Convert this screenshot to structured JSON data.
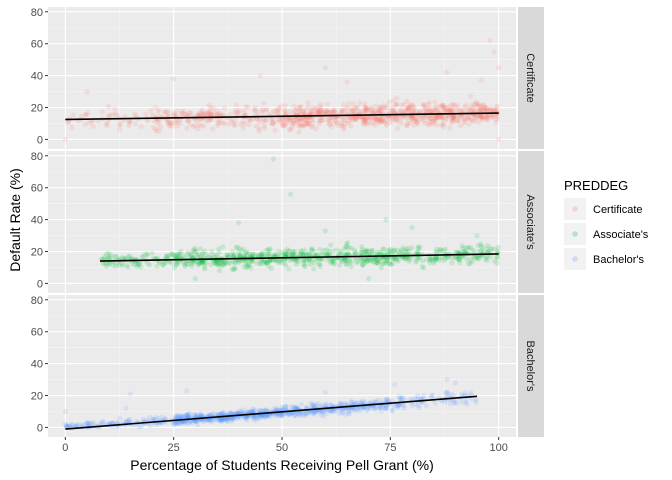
{
  "chart_data": {
    "type": "scatter",
    "xlabel": "Percentage of Students Receiving Pell Grant (%)",
    "ylabel": "Default Rate (%)",
    "xlim": [
      -4,
      104
    ],
    "ylim": [
      -6,
      83
    ],
    "x_ticks": [
      "0",
      "25",
      "50",
      "75",
      "100"
    ],
    "x_tick_values": [
      0,
      25,
      50,
      75,
      100
    ],
    "y_ticks": [
      "0",
      "20",
      "40",
      "60",
      "80"
    ],
    "y_tick_values": [
      0,
      20,
      40,
      60,
      80
    ],
    "grid": true,
    "point_alpha": 0.15,
    "legend": {
      "title": "PREDDEG",
      "position": "right",
      "entries": [
        "Certificate",
        "Associate's",
        "Bachelor's"
      ]
    },
    "panels": [
      {
        "strip": "Certificate",
        "color": "#F8766D",
        "trend": {
          "x": [
            0,
            100
          ],
          "y": [
            12.5,
            16.5
          ]
        },
        "cloud": [
          {
            "x": [
              0,
              20
            ],
            "y_center": [
              12,
              13
            ],
            "spread": 6,
            "n": 50
          },
          {
            "x": [
              20,
              50
            ],
            "y_center": [
              13,
              14
            ],
            "spread": 7,
            "n": 220
          },
          {
            "x": [
              50,
              75
            ],
            "y_center": [
              14,
              15.5
            ],
            "spread": 7,
            "n": 360
          },
          {
            "x": [
              75,
              100
            ],
            "y_center": [
              15.5,
              16.5
            ],
            "spread": 7,
            "n": 360
          }
        ],
        "outliers": [
          {
            "x": 98,
            "y": 62
          },
          {
            "x": 99,
            "y": 55
          },
          {
            "x": 100,
            "y": 45
          },
          {
            "x": 60,
            "y": 45
          },
          {
            "x": 45,
            "y": 40
          },
          {
            "x": 25,
            "y": 38
          },
          {
            "x": 88,
            "y": 42
          },
          {
            "x": 96,
            "y": 37
          },
          {
            "x": 5,
            "y": 30
          },
          {
            "x": 0,
            "y": 0
          },
          {
            "x": 100,
            "y": 0
          },
          {
            "x": 65,
            "y": 36
          }
        ]
      },
      {
        "strip": "Associate's",
        "color": "#00BA38",
        "trend": {
          "x": [
            8,
            100
          ],
          "y": [
            14,
            18.5
          ]
        },
        "cloud": [
          {
            "x": [
              8,
              25
            ],
            "y_center": [
              14,
              15
            ],
            "spread": 5,
            "n": 90
          },
          {
            "x": [
              25,
              55
            ],
            "y_center": [
              15,
              16.5
            ],
            "spread": 6,
            "n": 320
          },
          {
            "x": [
              55,
              80
            ],
            "y_center": [
              16.5,
              17.5
            ],
            "spread": 6,
            "n": 260
          },
          {
            "x": [
              80,
              100
            ],
            "y_center": [
              17.5,
              18.5
            ],
            "spread": 6,
            "n": 140
          }
        ],
        "outliers": [
          {
            "x": 48,
            "y": 78
          },
          {
            "x": 52,
            "y": 56
          },
          {
            "x": 74,
            "y": 40
          },
          {
            "x": 40,
            "y": 38
          },
          {
            "x": 80,
            "y": 35
          },
          {
            "x": 60,
            "y": 33
          },
          {
            "x": 95,
            "y": 30
          },
          {
            "x": 30,
            "y": 3
          },
          {
            "x": 70,
            "y": 3
          }
        ]
      },
      {
        "strip": "Bachelor's",
        "color": "#619CFF",
        "trend": {
          "x": [
            0,
            95
          ],
          "y": [
            -1,
            19.5
          ]
        },
        "cloud": [
          {
            "x": [
              0,
              25
            ],
            "y_center": [
              0,
              4.5
            ],
            "spread": 2.5,
            "n": 120
          },
          {
            "x": [
              25,
              50
            ],
            "y_center": [
              4.5,
              9.5
            ],
            "spread": 3,
            "n": 420
          },
          {
            "x": [
              50,
              75
            ],
            "y_center": [
              9.5,
              15
            ],
            "spread": 3.5,
            "n": 280
          },
          {
            "x": [
              75,
              95
            ],
            "y_center": [
              15,
              19.5
            ],
            "spread": 4,
            "n": 90
          }
        ],
        "outliers": [
          {
            "x": 88,
            "y": 30
          },
          {
            "x": 90,
            "y": 28
          },
          {
            "x": 76,
            "y": 27
          },
          {
            "x": 0,
            "y": 10
          },
          {
            "x": 14,
            "y": 12
          },
          {
            "x": 15,
            "y": 21
          },
          {
            "x": 28,
            "y": 23
          },
          {
            "x": 60,
            "y": 22
          }
        ]
      }
    ]
  }
}
